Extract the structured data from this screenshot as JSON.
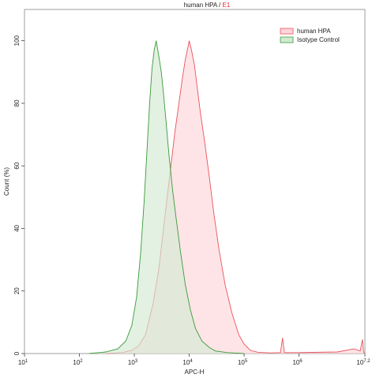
{
  "chart_data": {
    "type": "area",
    "title_main": "human HPA",
    "title_sep": " / ",
    "title_gate": "E1",
    "xlabel": "APC-H",
    "ylabel": "Count (%)",
    "xscale": "log",
    "xlim": [
      10,
      15848932
    ],
    "ylim": [
      0,
      110
    ],
    "x_ticks": [
      {
        "base": "10",
        "exp": "1",
        "value": 10
      },
      {
        "base": "10",
        "exp": "2",
        "value": 100
      },
      {
        "base": "10",
        "exp": "3",
        "value": 1000
      },
      {
        "base": "10",
        "exp": "4",
        "value": 10000
      },
      {
        "base": "10",
        "exp": "5",
        "value": 100000
      },
      {
        "base": "10",
        "exp": "6",
        "value": 1000000
      },
      {
        "base": "10",
        "exp": "7.2",
        "value": 15848932
      }
    ],
    "y_ticks": [
      "0",
      "20",
      "40",
      "60",
      "80",
      "100"
    ],
    "legend_position": "top-right",
    "grid": false,
    "series": [
      {
        "name": "human HPA",
        "line_color": "#e8525b",
        "fill_color": "#ffd6da",
        "points": [
          [
            300,
            0
          ],
          [
            600,
            0.3
          ],
          [
            900,
            1
          ],
          [
            1200,
            2.5
          ],
          [
            1600,
            6
          ],
          [
            2200,
            16
          ],
          [
            2800,
            27
          ],
          [
            3500,
            42
          ],
          [
            4500,
            58
          ],
          [
            5500,
            71
          ],
          [
            6500,
            80
          ],
          [
            7500,
            88
          ],
          [
            8500,
            94
          ],
          [
            9500,
            98
          ],
          [
            10000,
            100
          ],
          [
            11000,
            97
          ],
          [
            12500,
            92
          ],
          [
            14000,
            85
          ],
          [
            16000,
            77
          ],
          [
            19000,
            68
          ],
          [
            23000,
            57
          ],
          [
            28000,
            45
          ],
          [
            35000,
            33
          ],
          [
            45000,
            22
          ],
          [
            60000,
            13
          ],
          [
            80000,
            6
          ],
          [
            100000,
            3
          ],
          [
            130000,
            1
          ],
          [
            180000,
            0.4
          ],
          [
            300000,
            0.2
          ],
          [
            460000,
            0.3
          ],
          [
            500000,
            5
          ],
          [
            540000,
            0.3
          ],
          [
            1000000,
            0.3
          ],
          [
            5000000,
            0.5
          ],
          [
            10000000,
            1.5
          ],
          [
            13000000,
            0.8
          ],
          [
            14300000,
            4.5
          ],
          [
            15000000,
            0.5
          ],
          [
            15848932,
            0
          ]
        ]
      },
      {
        "name": "Isotype Control",
        "line_color": "#3a9a3a",
        "fill_color": "#d3ead2",
        "points": [
          [
            150,
            0
          ],
          [
            300,
            0.5
          ],
          [
            500,
            1.5
          ],
          [
            700,
            4
          ],
          [
            900,
            9
          ],
          [
            1100,
            18
          ],
          [
            1300,
            32
          ],
          [
            1500,
            48
          ],
          [
            1700,
            65
          ],
          [
            1900,
            80
          ],
          [
            2100,
            91
          ],
          [
            2300,
            97
          ],
          [
            2500,
            100
          ],
          [
            2800,
            95
          ],
          [
            3100,
            90
          ],
          [
            3400,
            83
          ],
          [
            3800,
            74
          ],
          [
            4300,
            63
          ],
          [
            5000,
            52
          ],
          [
            5800,
            43
          ],
          [
            7000,
            32
          ],
          [
            8500,
            22
          ],
          [
            10500,
            14
          ],
          [
            13000,
            8
          ],
          [
            17000,
            4
          ],
          [
            23000,
            2
          ],
          [
            30000,
            0.8
          ],
          [
            50000,
            0.3
          ],
          [
            100000,
            0
          ]
        ]
      }
    ]
  }
}
